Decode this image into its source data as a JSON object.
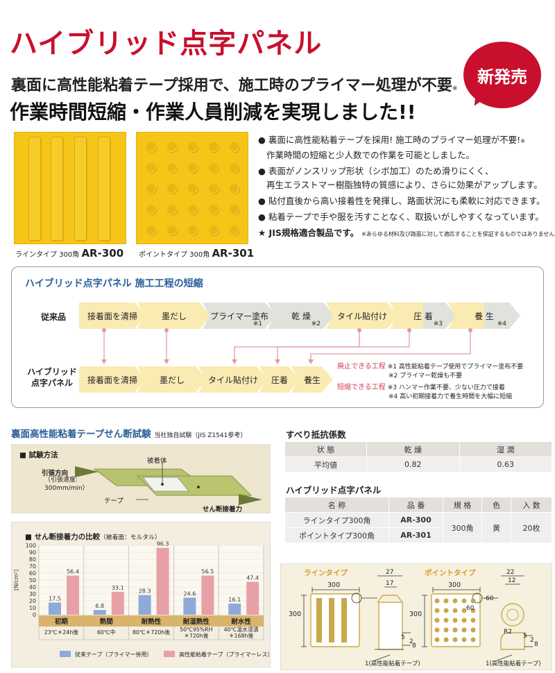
{
  "header": {
    "title": "ハイブリッド点字パネル",
    "subtitle1": "裏面に高性能粘着テープ採用で、施工時のプライマー処理が不要",
    "subtitle1_note": "※",
    "subtitle2": "作業時間短縮・作業人員削減を実現しました!!",
    "badge": "新発売"
  },
  "products": {
    "line_caption": "ラインタイプ 300角",
    "line_code": "AR-300",
    "point_caption": "ポイントタイプ 300角",
    "point_code": "AR-301"
  },
  "bullets": [
    {
      "l1": "● 裏面に高性能粘着テープを採用! 施工時のプライマー処理が不要!",
      "note": "※",
      "l2": "作業時間の短縮と少人数での作業を可能としました。"
    },
    {
      "l1": "● 表面がノンスリップ形状（シボ加工）のため滑りにくく、",
      "note": "",
      "l2": "再生エラストマー樹脂独特の質感により、さらに効果がアップします。"
    },
    {
      "l1": "● 貼付直後から高い接着性を発揮し、路面状況にも柔軟に対応できます。",
      "note": "",
      "l2": ""
    },
    {
      "l1": "● 粘着テープで手や服を汚すことなく、取扱いがしやすくなっています。",
      "note": "",
      "l2": ""
    }
  ],
  "jis": "★ JIS規格適合製品です。",
  "jis_note": "※あらゆる材料及び路面に対して適応することを保証するものではありません。",
  "flow": {
    "title": "ハイブリッド点字パネル 施工工程の短縮",
    "row1_label": "従来品",
    "row1": [
      {
        "label": "接着面を清掃",
        "note": ""
      },
      {
        "label": "墨だし",
        "note": ""
      },
      {
        "label": "プライマー塗布",
        "note": "※1"
      },
      {
        "label": "乾 燥",
        "note": "※2"
      },
      {
        "label": "タイル貼付け",
        "note": ""
      },
      {
        "label": "圧 着",
        "note": "※3"
      },
      {
        "label": "養 生",
        "note": "※4"
      }
    ],
    "row2_label": [
      "ハイブリッド",
      "点字パネル"
    ],
    "row2": [
      "接着面を清掃",
      "墨だし",
      "タイル貼付け",
      "圧着",
      "養生"
    ],
    "legend_red1": "廃止できる工程",
    "legend_1": "※1 高性能粘着テープ使用でプライマー塗布不要",
    "legend_2": "※2 プライマー乾燥も不要",
    "legend_red2": "短縮できる工程",
    "legend_3": "※3 ハンマー作業不要、少ない圧力で接着",
    "legend_4": "※4 高い初期接着力で養生時間を大幅に短縮"
  },
  "shear": {
    "title": "裏面高性能粘着テープせん断試験",
    "title_note": "当社独自試験（JIS Z1541参考）",
    "method_label": "■ 試験方法",
    "pull_dir": "引張方向",
    "pull_speed1": "（引張速度:",
    "pull_speed2": "300mm/min）",
    "adherend": "被着体",
    "tape": "テープ",
    "shear_force": "せん断接着力"
  },
  "chart_data": {
    "type": "bar",
    "title": "■ せん断接着力の比較",
    "title_note": "（被着面：モルタル）",
    "ylabel": "[N/cm²]",
    "ylim": [
      0,
      100
    ],
    "yticks": [
      0,
      10,
      20,
      30,
      40,
      50,
      60,
      70,
      80,
      90,
      100
    ],
    "categories": [
      "初期",
      "熱間",
      "耐熱性",
      "耐湿熱性",
      "耐水性"
    ],
    "conditions": [
      "23℃＊24h後",
      "60℃中",
      "80℃＊720h後",
      "50℃95%RH ＊720h後",
      "40℃温水浸漬 ＊168h後"
    ],
    "series": [
      {
        "name": "従来テープ（プライマー併用）",
        "values": [
          17.5,
          6.8,
          28.3,
          24.6,
          16.1
        ],
        "color": "#8fa9d9"
      },
      {
        "name": "高性能粘着テープ（プライマーレス）",
        "values": [
          56.4,
          33.1,
          96.3,
          56.5,
          47.4
        ],
        "color": "#e8a0a7"
      }
    ]
  },
  "slip": {
    "title": "すべり抵抗係数",
    "headers": [
      "状 態",
      "乾 燥",
      "湿 潤"
    ],
    "row": [
      "平均値",
      "0.82",
      "0.63"
    ]
  },
  "spec": {
    "title": "ハイブリッド点字パネル",
    "headers": [
      "名 称",
      "品 番",
      "規 格",
      "色",
      "入 数"
    ],
    "rows": [
      {
        "name": "ラインタイプ300角",
        "code": "AR-300"
      },
      {
        "name": "ポイントタイプ300角",
        "code": "AR-301"
      }
    ],
    "size": "300角",
    "color": "黄",
    "qty": "20枚"
  },
  "dims": {
    "line_title": "ラインタイプ",
    "point_title": "ポイントタイプ",
    "w300": "300",
    "h300": "300",
    "d27": "27",
    "d17": "17",
    "d5": "5",
    "d2": "2",
    "d8": "8",
    "d22": "22",
    "d12": "12",
    "d60a": "60",
    "d60b": "60",
    "r2": "R2",
    "tape_note": "1(高性能粘着テープ)"
  }
}
